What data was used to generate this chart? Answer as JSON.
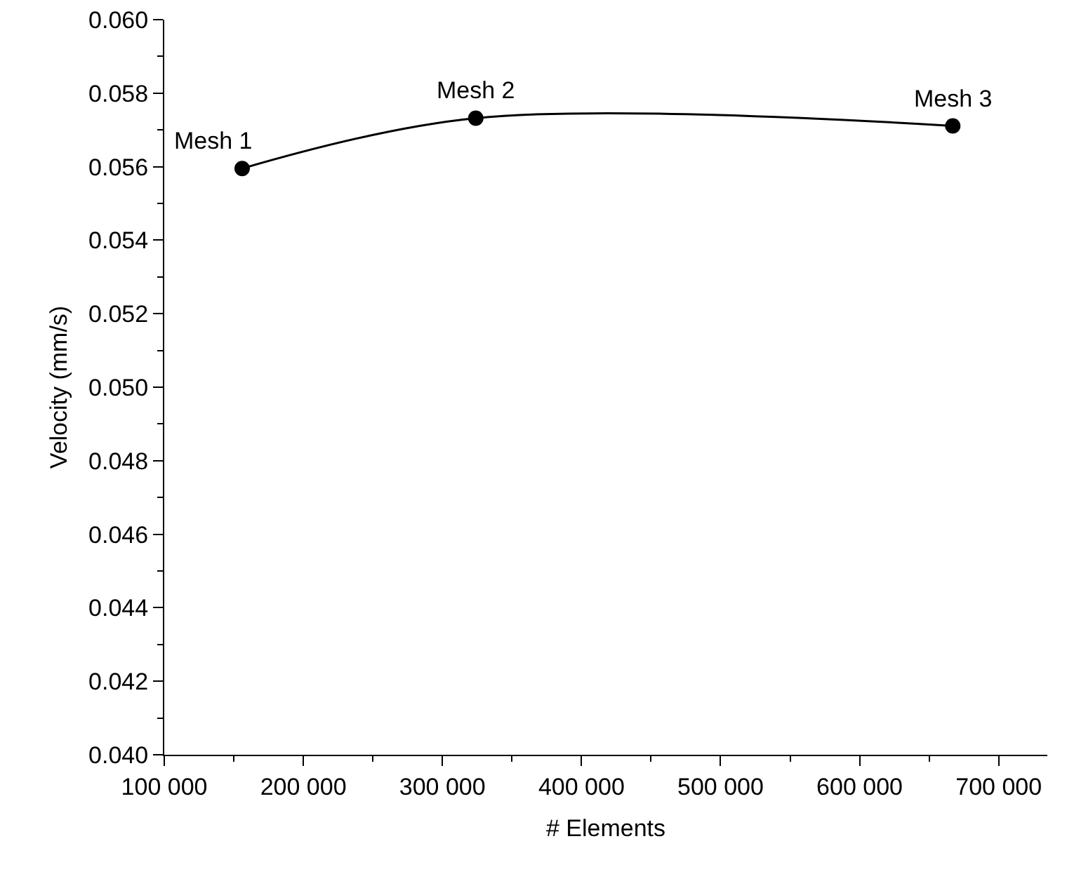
{
  "chart_data": {
    "type": "line",
    "xlabel": "# Elements",
    "ylabel": "Velocity (mm/s)",
    "x": [
      156000,
      324000,
      667000
    ],
    "series": [
      {
        "color": "#000000",
        "values": [
          0.05595,
          0.05732,
          0.05711
        ]
      }
    ],
    "marker": "circle",
    "line_style": "solid",
    "grid": false,
    "xlim": [
      100000,
      735000
    ],
    "xticks": [
      {
        "value": 100000,
        "label": "100 000"
      },
      {
        "value": 200000,
        "label": "200 000"
      },
      {
        "value": 300000,
        "label": "300 000"
      },
      {
        "value": 400000,
        "label": "400 000"
      },
      {
        "value": 500000,
        "label": "500 000"
      },
      {
        "value": 600000,
        "label": "600 000"
      },
      {
        "value": 700000,
        "label": "700 000"
      }
    ],
    "ylim": [
      0.04,
      0.06
    ],
    "yticks": [
      {
        "value": 0.04,
        "label": "0.040"
      },
      {
        "value": 0.042,
        "label": "0.042"
      },
      {
        "value": 0.044,
        "label": "0.044"
      },
      {
        "value": 0.046,
        "label": "0.046"
      },
      {
        "value": 0.048,
        "label": "0.048"
      },
      {
        "value": 0.05,
        "label": "0.050"
      },
      {
        "value": 0.052,
        "label": "0.052"
      },
      {
        "value": 0.054,
        "label": "0.054"
      },
      {
        "value": 0.056,
        "label": "0.056"
      },
      {
        "value": 0.058,
        "label": "0.058"
      },
      {
        "value": 0.06,
        "label": "0.060"
      }
    ],
    "annotations": [
      {
        "text": "Mesh 1",
        "x": 156000,
        "y": 0.05595
      },
      {
        "text": "Mesh 2",
        "x": 324000,
        "y": 0.05732
      },
      {
        "text": "Mesh 3",
        "x": 667000,
        "y": 0.05711
      }
    ]
  }
}
